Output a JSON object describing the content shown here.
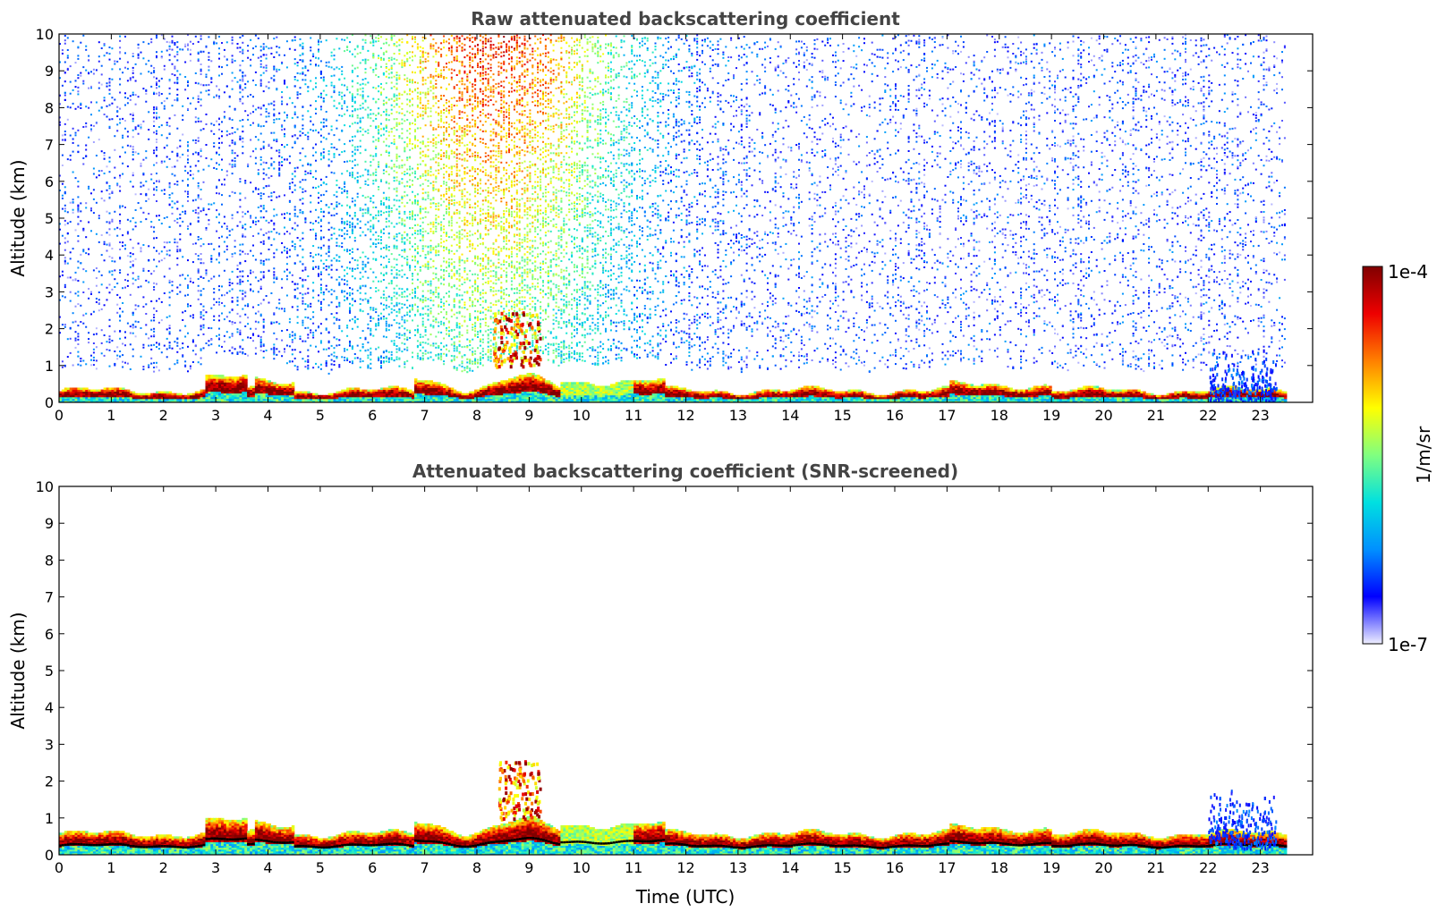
{
  "chart_data": [
    {
      "type": "heatmap",
      "title": "Raw attenuated backscattering coefficient",
      "xlabel": "",
      "ylabel": "Altitude (km)",
      "xlim": [
        0,
        24
      ],
      "ylim": [
        0,
        10
      ],
      "x_ticks": [
        "0",
        "1",
        "2",
        "3",
        "4",
        "5",
        "6",
        "7",
        "8",
        "9",
        "10",
        "11",
        "12",
        "13",
        "14",
        "15",
        "16",
        "17",
        "18",
        "19",
        "20",
        "21",
        "22",
        "23"
      ],
      "y_ticks": [
        "0",
        "1",
        "2",
        "3",
        "4",
        "5",
        "6",
        "7",
        "8",
        "9",
        "10"
      ],
      "data_end_hour": 23.5,
      "features": [
        {
          "kind": "boundary-layer aerosol (high backscatter)",
          "x_range": [
            0,
            23.5
          ],
          "altitude_km": [
            0,
            0.6
          ]
        },
        {
          "kind": "elevated aerosol/cloud layer",
          "x_range": [
            8.3,
            9.2
          ],
          "altitude_km": [
            1.0,
            2.5
          ]
        },
        {
          "kind": "noise-dominated signal (solar background)",
          "x_range": [
            5,
            12
          ],
          "altitude_km": [
            1,
            10
          ]
        },
        {
          "kind": "low cloud/precipitation signal",
          "x_range": [
            22,
            23.3
          ],
          "altitude_km": [
            0,
            1.5
          ]
        }
      ]
    },
    {
      "type": "heatmap",
      "title": "Attenuated backscattering coefficient (SNR-screened)",
      "xlabel": "Time (UTC)",
      "ylabel": "Altitude (km)",
      "xlim": [
        0,
        24
      ],
      "ylim": [
        0,
        10
      ],
      "x_ticks": [
        "0",
        "1",
        "2",
        "3",
        "4",
        "5",
        "6",
        "7",
        "8",
        "9",
        "10",
        "11",
        "12",
        "13",
        "14",
        "15",
        "16",
        "17",
        "18",
        "19",
        "20",
        "21",
        "22",
        "23"
      ],
      "y_ticks": [
        "0",
        "1",
        "2",
        "3",
        "4",
        "5",
        "6",
        "7",
        "8",
        "9",
        "10"
      ],
      "data_end_hour": 23.5,
      "features": [
        {
          "kind": "boundary-layer aerosol (high backscatter)",
          "x_range": [
            0,
            23.5
          ],
          "altitude_km": [
            0,
            1.1
          ]
        },
        {
          "kind": "elevated aerosol/cloud layer",
          "x_range": [
            8.4,
            9.2
          ],
          "altitude_km": [
            1.0,
            2.6
          ]
        },
        {
          "kind": "low cloud/precipitation signal",
          "x_range": [
            22,
            23.3
          ],
          "altitude_km": [
            0.2,
            1.8
          ]
        }
      ]
    }
  ],
  "colorbar": {
    "min_label": "1e-7",
    "max_label": "1e-4",
    "unit": "1/m/sr",
    "scale": "log",
    "colormap": [
      "#eeeeff",
      "#0000ff",
      "#0090ff",
      "#00e0e0",
      "#80ff80",
      "#ffff00",
      "#ff8000",
      "#ee0000",
      "#800000"
    ]
  }
}
